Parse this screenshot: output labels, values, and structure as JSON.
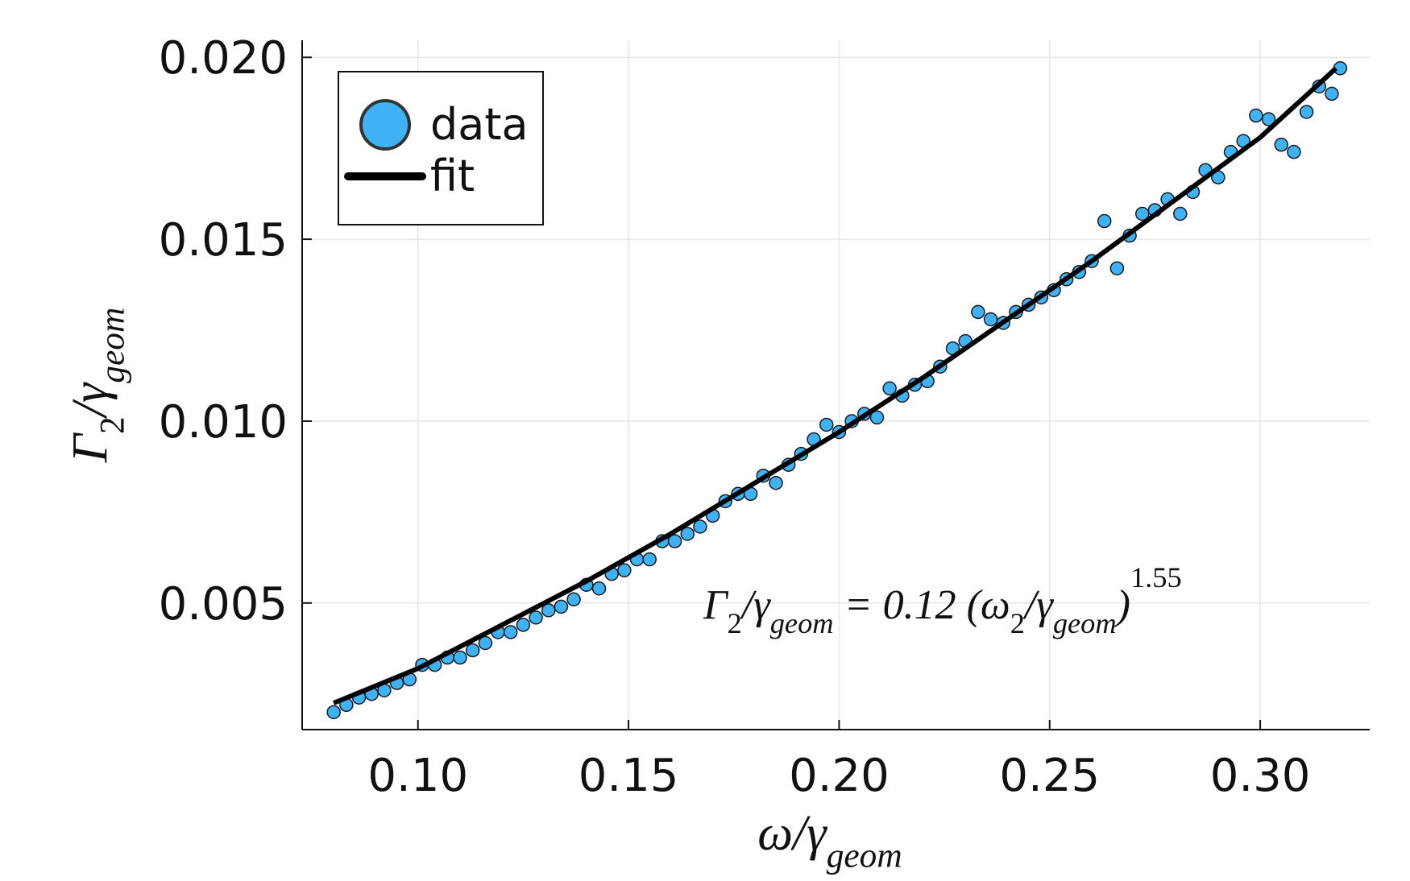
{
  "chart_data": {
    "type": "scatter",
    "xlabel": [
      {
        "text": "ω/γ"
      },
      {
        "sub": "geom"
      }
    ],
    "ylabel": [
      {
        "text": "Γ"
      },
      {
        "sub": "2"
      },
      {
        "text": "/γ"
      },
      {
        "sub": "geom"
      }
    ],
    "annotation": [
      {
        "text": "Γ"
      },
      {
        "sub": "2"
      },
      {
        "text": "/γ"
      },
      {
        "sub": "geom"
      },
      {
        "text": " = 0.12 (ω"
      },
      {
        "sub": "2"
      },
      {
        "text": "/γ"
      },
      {
        "sub": "geom"
      },
      {
        "text": ")"
      },
      {
        "sup": "1.55"
      }
    ],
    "xlim": [
      0.0725,
      0.326
    ],
    "ylim": [
      0.00152,
      0.02047
    ],
    "xticks": [
      {
        "value": 0.1,
        "label": "0.10"
      },
      0.15,
      {
        "value": 0.2,
        "label": "0.20"
      },
      0.25,
      {
        "value": 0.3,
        "label": "0.30"
      }
    ],
    "yticks": [
      {
        "value": 0.005,
        "label": "0.005"
      },
      {
        "value": 0.01,
        "label": "0.010"
      },
      {
        "value": 0.015,
        "label": "0.015"
      },
      {
        "value": 0.02,
        "label": "0.020"
      }
    ],
    "grid": true,
    "legend": "top-left",
    "series": [
      {
        "name": "data",
        "type": "scatter",
        "color": "#3fb1f5",
        "x": [
          0.08,
          0.083,
          0.086,
          0.089,
          0.092,
          0.095,
          0.098,
          0.101,
          0.104,
          0.107,
          0.11,
          0.113,
          0.116,
          0.119,
          0.122,
          0.125,
          0.128,
          0.131,
          0.134,
          0.137,
          0.14,
          0.143,
          0.146,
          0.149,
          0.152,
          0.155,
          0.158,
          0.161,
          0.164,
          0.167,
          0.17,
          0.173,
          0.176,
          0.179,
          0.182,
          0.185,
          0.188,
          0.191,
          0.194,
          0.197,
          0.2,
          0.203,
          0.206,
          0.209,
          0.212,
          0.215,
          0.218,
          0.221,
          0.224,
          0.227,
          0.23,
          0.233,
          0.236,
          0.239,
          0.242,
          0.245,
          0.248,
          0.251,
          0.254,
          0.257,
          0.26,
          0.263,
          0.266,
          0.269,
          0.272,
          0.275,
          0.278,
          0.281,
          0.284,
          0.287,
          0.29,
          0.293,
          0.296,
          0.299,
          0.302,
          0.305,
          0.308,
          0.311,
          0.314,
          0.317,
          0.319
        ],
        "values": [
          0.002,
          0.0022,
          0.0024,
          0.0025,
          0.0026,
          0.0028,
          0.0029,
          0.0033,
          0.0033,
          0.0035,
          0.0035,
          0.0037,
          0.0039,
          0.0042,
          0.0042,
          0.0044,
          0.0046,
          0.0048,
          0.0049,
          0.0051,
          0.0055,
          0.0054,
          0.0058,
          0.0059,
          0.0062,
          0.0062,
          0.0067,
          0.0067,
          0.0069,
          0.0071,
          0.0074,
          0.0078,
          0.008,
          0.008,
          0.0085,
          0.0083,
          0.0088,
          0.0091,
          0.0095,
          0.0099,
          0.0097,
          0.01,
          0.0102,
          0.0101,
          0.0109,
          0.0107,
          0.011,
          0.0111,
          0.0115,
          0.012,
          0.0122,
          0.013,
          0.0128,
          0.0127,
          0.013,
          0.0132,
          0.0134,
          0.0136,
          0.0139,
          0.0141,
          0.0144,
          0.0155,
          0.0142,
          0.0151,
          0.0157,
          0.0158,
          0.0161,
          0.0157,
          0.0163,
          0.0169,
          0.0167,
          0.0174,
          0.0177,
          0.0184,
          0.0183,
          0.0176,
          0.0174,
          0.0185,
          0.0192,
          0.019,
          0.0197
        ]
      },
      {
        "name": "fit",
        "type": "line",
        "color": "#000000",
        "x": [
          0.08,
          0.1,
          0.12,
          0.14,
          0.16,
          0.18,
          0.2,
          0.22,
          0.24,
          0.26,
          0.28,
          0.3,
          0.318
        ],
        "values": [
          0.00225,
          0.0032,
          0.0044,
          0.0056,
          0.0069,
          0.0083,
          0.0097,
          0.0112,
          0.0128,
          0.0144,
          0.0161,
          0.0178,
          0.0197
        ]
      }
    ]
  }
}
